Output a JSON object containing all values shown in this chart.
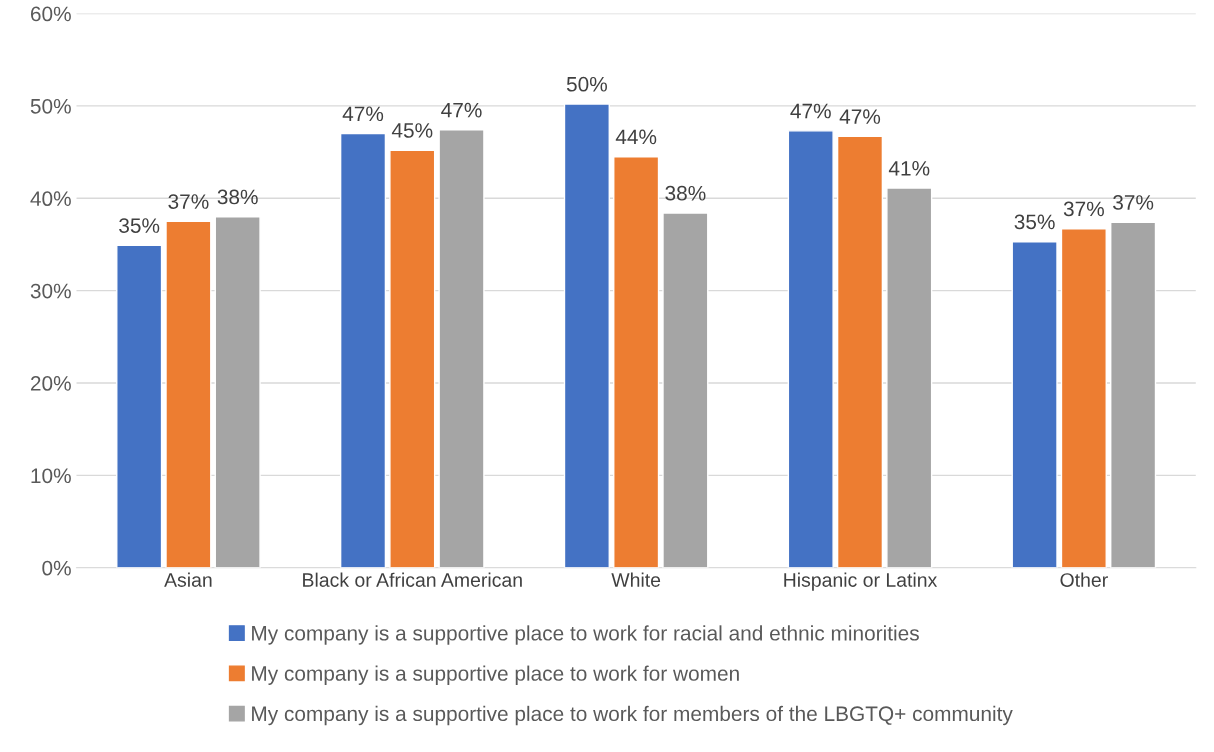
{
  "chart_data": {
    "type": "bar",
    "categories": [
      "Asian",
      "Black or African American",
      "White",
      "Hispanic or Latinx",
      "Other"
    ],
    "series": [
      {
        "name": "My company is a supportive place to work for racial and ethnic minorities",
        "color": "#4472c4",
        "values": [
          34.9,
          47.0,
          50.2,
          47.3,
          35.3
        ],
        "value_labels": [
          "35%",
          "47%",
          "50%",
          "47%",
          "35%"
        ]
      },
      {
        "name": "My company is a supportive place to work for women",
        "color": "#ed7d31",
        "values": [
          37.5,
          45.2,
          44.5,
          46.7,
          36.7
        ],
        "value_labels": [
          "37%",
          "45%",
          "44%",
          "47%",
          "37%"
        ]
      },
      {
        "name": "My company is a supportive place to work for members of the LBGTQ+ community",
        "color": "#a5a5a5",
        "values": [
          38.0,
          47.4,
          38.4,
          41.1,
          37.4
        ],
        "value_labels": [
          "38%",
          "47%",
          "38%",
          "41%",
          "37%"
        ]
      }
    ],
    "ylim": [
      0,
      60
    ],
    "yticks": [
      {
        "value": 0,
        "label": "0%"
      },
      {
        "value": 10,
        "label": "10%"
      },
      {
        "value": 20,
        "label": "20%"
      },
      {
        "value": 30,
        "label": "30%"
      },
      {
        "value": 40,
        "label": "40%"
      },
      {
        "value": 50,
        "label": "50%"
      },
      {
        "value": 60,
        "label": "60%"
      }
    ],
    "grid": "y",
    "legend": "bottom"
  }
}
